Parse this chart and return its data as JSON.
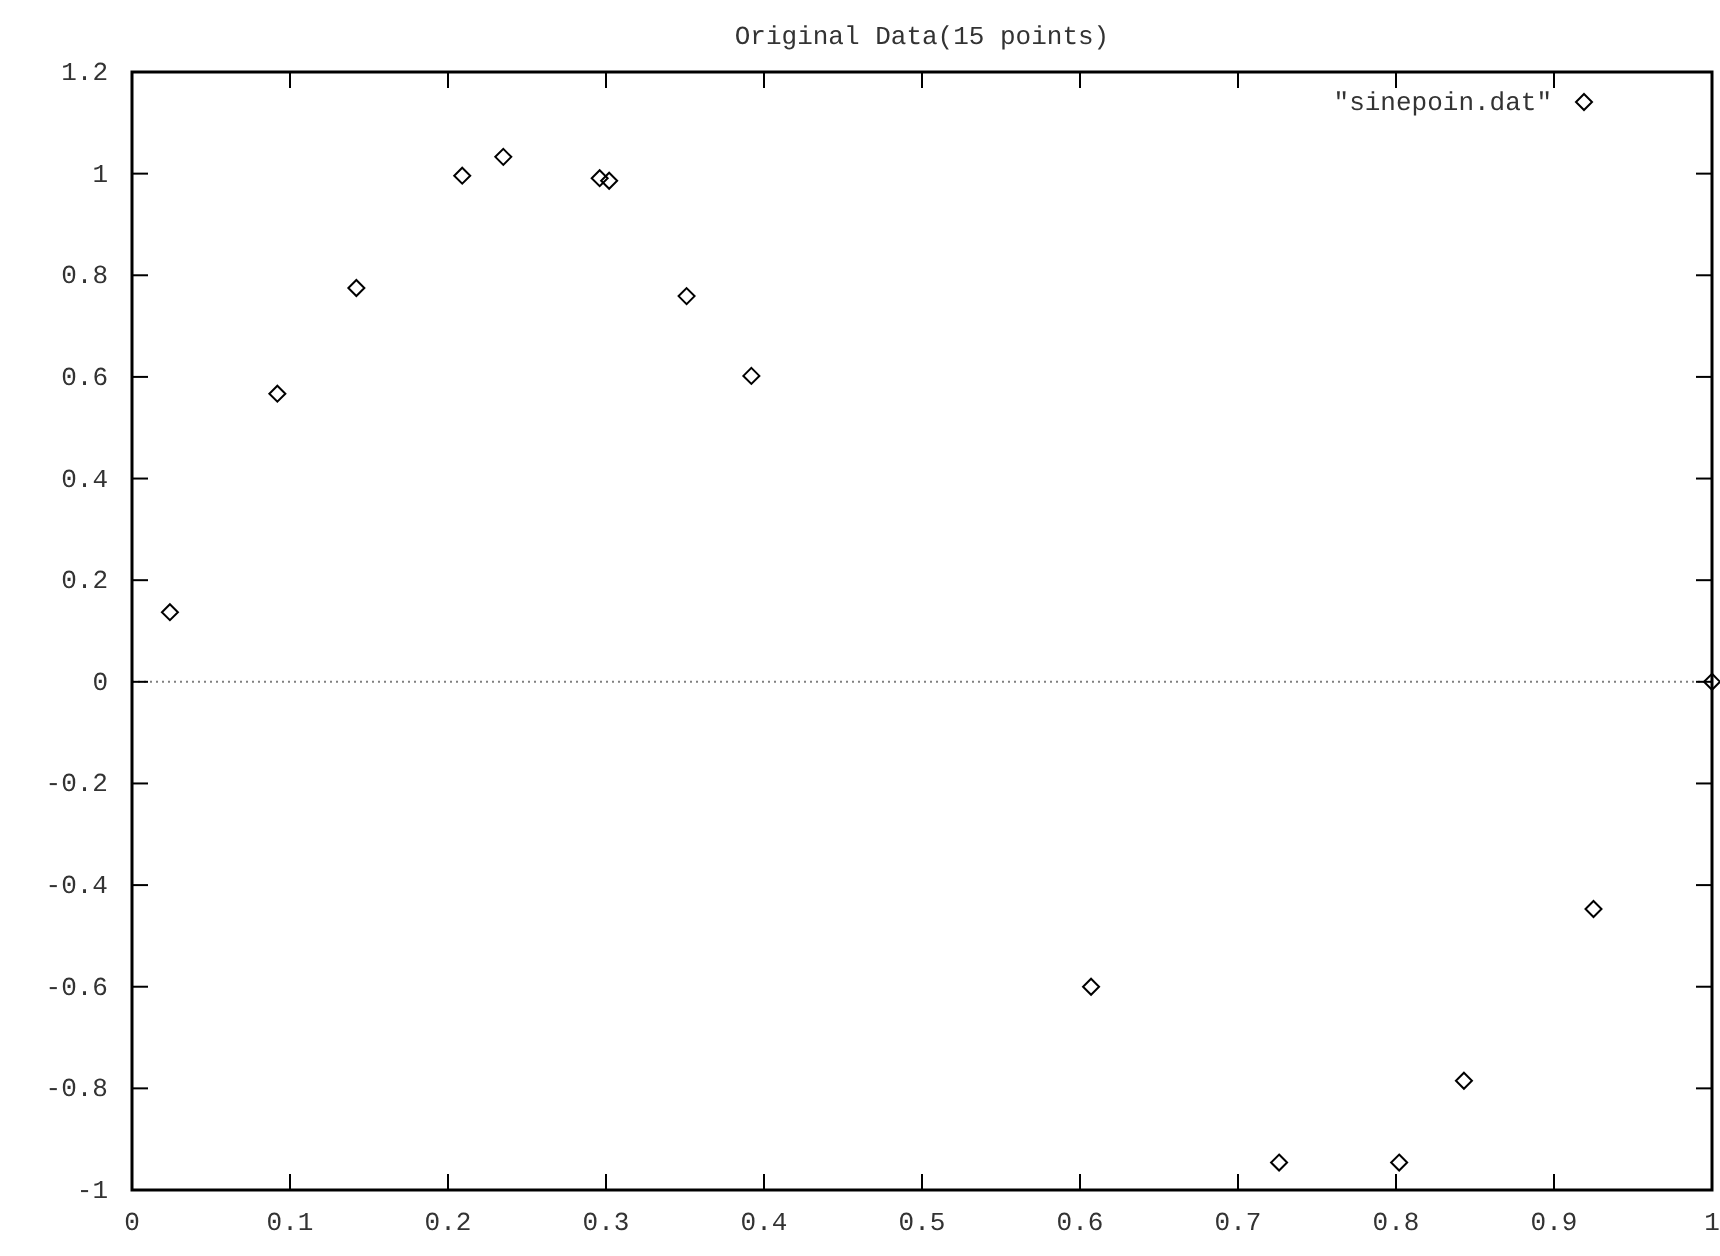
{
  "chart_data": {
    "type": "scatter",
    "title": "Original Data(15 points)",
    "x": [
      0.024,
      0.092,
      0.142,
      0.209,
      0.235,
      0.296,
      0.302,
      0.351,
      0.392,
      0.607,
      0.726,
      0.802,
      0.843,
      0.925,
      1.0
    ],
    "series": [
      {
        "name": "\"sinepoin.dat\"",
        "color": "#000000",
        "values": [
          0.137,
          0.567,
          0.775,
          0.996,
          1.033,
          0.991,
          0.986,
          0.759,
          0.602,
          -0.6,
          -0.946,
          -0.946,
          -0.785,
          -0.447,
          0.0
        ]
      }
    ],
    "xlim": [
      0,
      1
    ],
    "ylim": [
      -1,
      1.2
    ],
    "xticks": [
      0,
      0.1,
      0.2,
      0.3,
      0.4,
      0.5,
      0.6,
      0.7,
      0.8,
      0.9,
      1
    ],
    "yticks": [
      -1,
      -0.8,
      -0.6,
      -0.4,
      -0.2,
      0,
      0.2,
      0.4,
      0.6,
      0.8,
      1,
      1.2
    ],
    "ref_lines": [
      {
        "axis": "y",
        "value": 0,
        "line_style": "dotted",
        "color": "#808080"
      }
    ],
    "marker": "diamond",
    "legend": "top right",
    "grid": false
  }
}
